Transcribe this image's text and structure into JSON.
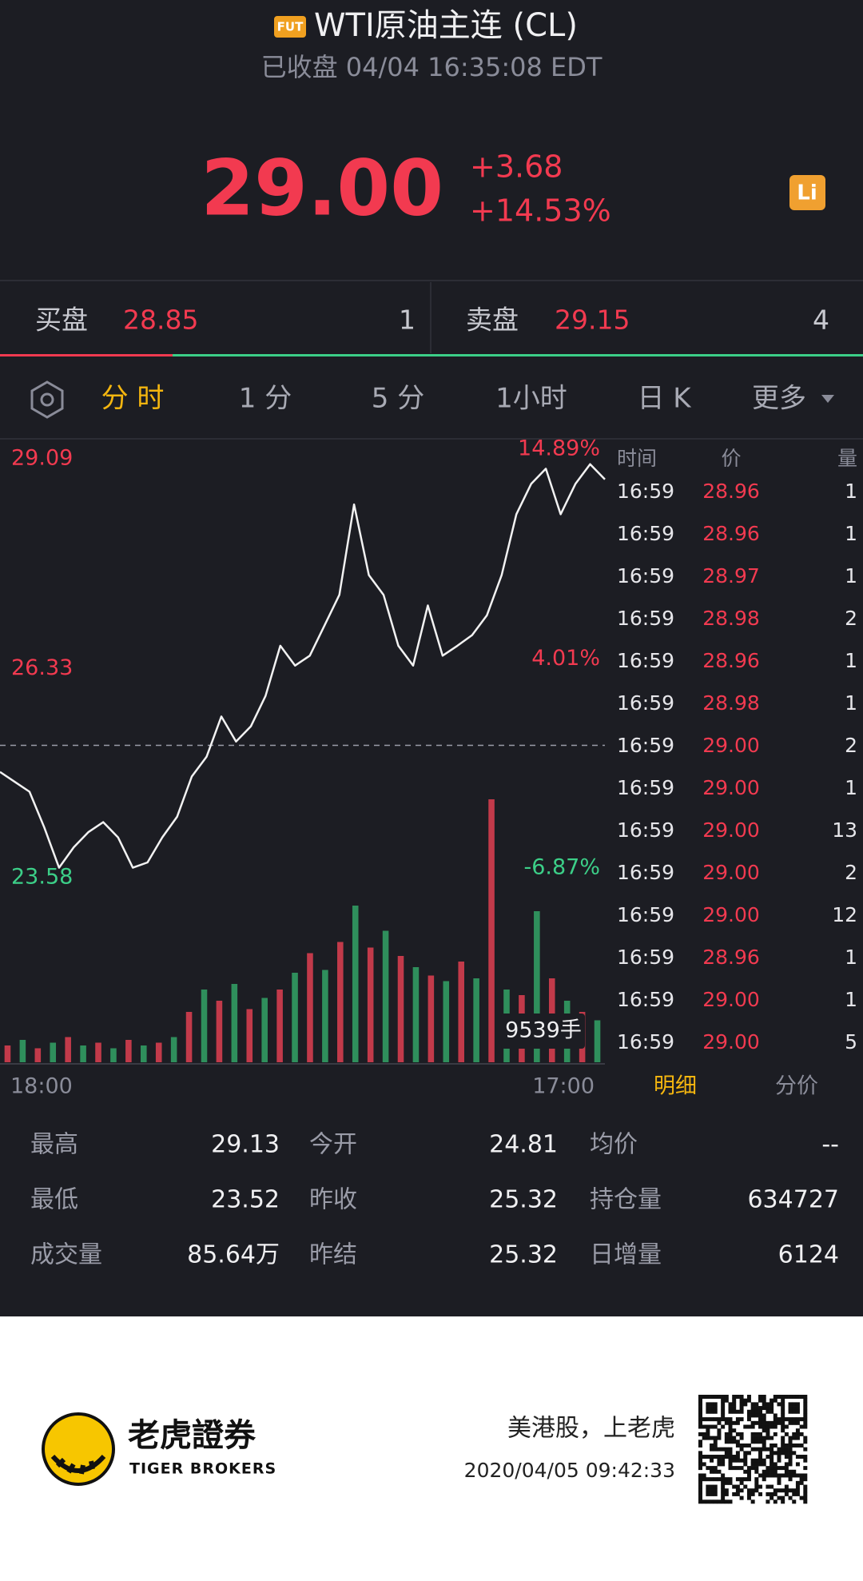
{
  "header": {
    "badge": "FUT",
    "title": "WTI原油主连 (CL)",
    "status": "已收盘 04/04 16:35:08 EDT"
  },
  "quote": {
    "price": "29.00",
    "change": "+3.68",
    "change_pct": "+14.53%",
    "icon": "Li"
  },
  "order_book": {
    "bid_label": "买盘",
    "bid_price": "28.85",
    "bid_size": 1,
    "ask_label": "卖盘",
    "ask_price": "29.15",
    "ask_size": 4
  },
  "tabs": [
    "分 时",
    "1 分",
    "5 分",
    "1小时",
    "日 K",
    "更多"
  ],
  "chart": {
    "price_ticks": [
      29.09,
      26.33,
      23.58
    ],
    "pct_ticks": [
      "14.89%",
      "4.01%",
      "-6.87%"
    ],
    "prices": [
      24.97,
      24.84,
      24.71,
      24.24,
      23.71,
      23.98,
      24.18,
      24.31,
      24.11,
      23.71,
      23.78,
      24.11,
      24.38,
      24.91,
      25.17,
      25.7,
      25.37,
      25.57,
      25.97,
      26.63,
      26.37,
      26.5,
      26.9,
      27.3,
      28.49,
      27.56,
      27.3,
      26.63,
      26.37,
      27.16,
      26.5,
      26.63,
      26.77,
      27.03,
      27.56,
      28.36,
      28.76,
      28.96,
      28.36,
      28.76,
      29.02,
      28.82
    ],
    "line_color": "#f2f2f2",
    "volumes": [
      600,
      800,
      500,
      700,
      900,
      600,
      700,
      500,
      800,
      600,
      700,
      900,
      1800,
      2600,
      2200,
      2800,
      1900,
      2300,
      2600,
      3200,
      3900,
      3300,
      4300,
      5600,
      4100,
      4700,
      3800,
      3400,
      3100,
      2900,
      3600,
      3000,
      9400,
      2600,
      2400,
      5400,
      3000,
      2200,
      1800,
      1500
    ],
    "volume_lim": [
      0,
      10000
    ],
    "volume_colors": [
      "#c23a4a",
      "#2f8f5c"
    ],
    "volume_label": "9539手",
    "x_labels": [
      "18:00",
      "17:00"
    ]
  },
  "trades": {
    "headers": [
      "时间",
      "价",
      "量"
    ],
    "rows": [
      [
        "16:59",
        "28.96",
        "1"
      ],
      [
        "16:59",
        "28.96",
        "1"
      ],
      [
        "16:59",
        "28.97",
        "1"
      ],
      [
        "16:59",
        "28.98",
        "2"
      ],
      [
        "16:59",
        "28.96",
        "1"
      ],
      [
        "16:59",
        "28.98",
        "1"
      ],
      [
        "16:59",
        "29.00",
        "2"
      ],
      [
        "16:59",
        "29.00",
        "1"
      ],
      [
        "16:59",
        "29.00",
        "13"
      ],
      [
        "16:59",
        "29.00",
        "2"
      ],
      [
        "16:59",
        "29.00",
        "12"
      ],
      [
        "16:59",
        "28.96",
        "1"
      ],
      [
        "16:59",
        "29.00",
        "1"
      ],
      [
        "16:59",
        "29.00",
        "5"
      ]
    ],
    "tabs": [
      "明细",
      "分价"
    ]
  },
  "stats": {
    "rows": [
      [
        {
          "label": "最高",
          "value": "29.13"
        },
        {
          "label": "今开",
          "value": "24.81"
        },
        {
          "label": "均价",
          "value": "--"
        }
      ],
      [
        {
          "label": "最低",
          "value": "23.52"
        },
        {
          "label": "昨收",
          "value": "25.32"
        },
        {
          "label": "持仓量",
          "value": "634727"
        }
      ],
      [
        {
          "label": "成交量",
          "value": "85.64万"
        },
        {
          "label": "昨结",
          "value": "25.32"
        },
        {
          "label": "日增量",
          "value": "6124"
        }
      ]
    ]
  },
  "footer": {
    "brand": "老虎證券",
    "brand_en": "TIGER BROKERS",
    "slogan": "美港股，上老虎",
    "timestamp": "2020/04/05 09:42:33"
  }
}
